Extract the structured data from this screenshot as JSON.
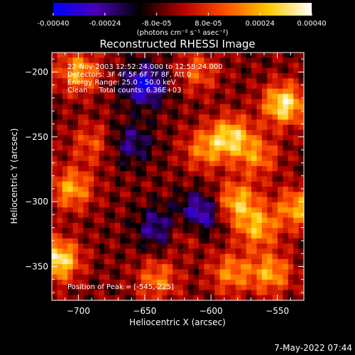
{
  "chart_data": {
    "type": "heatmap",
    "title": "Reconstructed RHESSI Image",
    "xlabel": "Heliocentric X (arcsec)",
    "ylabel": "Heliocentric Y (arcsec)",
    "xlim": [
      -720,
      -530
    ],
    "ylim": [
      -376,
      -185
    ],
    "xticks": [
      -700,
      -650,
      -600,
      -550
    ],
    "yticks": [
      -200,
      -250,
      -300,
      -350
    ],
    "colorbar": {
      "min": -0.0004,
      "max": 0.0004,
      "ticks": [
        "-0.00040",
        "-0.00024",
        "-8.0e-05",
        "8.0e-05",
        "0.00024",
        "0.00040"
      ],
      "label": "(photons cm⁻² s⁻¹ asec⁻²)",
      "colormap": [
        "#0000ff",
        "#4a00b4",
        "#000000",
        "#b40000",
        "#ff5000",
        "#ffc800",
        "#ffffff"
      ]
    },
    "annotations": [
      "22-Nov-2003 12:52:24.000 to 12:58:24.000",
      "Detectors: 3F 4F 5F 6F 7F 8F, Att 0",
      "Energy Range: 25.0 - 50.0 keV",
      "Clean     Total counts: 6.36E+03"
    ],
    "peak_label": "Position of Peak = [-545,-225]",
    "grid": false,
    "sources": [
      {
        "x": -545,
        "y": -225,
        "peak": 0.0004
      },
      {
        "x": -585,
        "y": -250,
        "peak": 0.00034
      },
      {
        "x": -580,
        "y": -300,
        "peak": 0.0003
      },
      {
        "x": -565,
        "y": -320,
        "peak": 0.00028
      },
      {
        "x": -605,
        "y": -260,
        "peak": 0.00022
      },
      {
        "x": -565,
        "y": -265,
        "peak": 0.00022
      },
      {
        "x": -555,
        "y": -355,
        "peak": 0.00028
      },
      {
        "x": -535,
        "y": -305,
        "peak": 0.00028
      },
      {
        "x": -585,
        "y": -355,
        "peak": 0.00024
      },
      {
        "x": -620,
        "y": -320,
        "peak": 0.00018
      },
      {
        "x": -715,
        "y": -345,
        "peak": 0.0004
      },
      {
        "x": -705,
        "y": -290,
        "peak": 0.00028
      },
      {
        "x": -700,
        "y": -200,
        "peak": 0.00028
      },
      {
        "x": -640,
        "y": -360,
        "peak": 0.00022
      },
      {
        "x": -610,
        "y": -200,
        "peak": 0.00018
      },
      {
        "x": -690,
        "y": -255,
        "peak": 0.00016
      },
      {
        "x": -650,
        "y": -210,
        "peak": -0.00032
      },
      {
        "x": -610,
        "y": -310,
        "peak": -0.00032
      },
      {
        "x": -660,
        "y": -255,
        "peak": -0.00018
      },
      {
        "x": -640,
        "y": -320,
        "peak": -0.00022
      }
    ]
  },
  "footer": {
    "timestamp": "7-May-2022 07:44"
  }
}
